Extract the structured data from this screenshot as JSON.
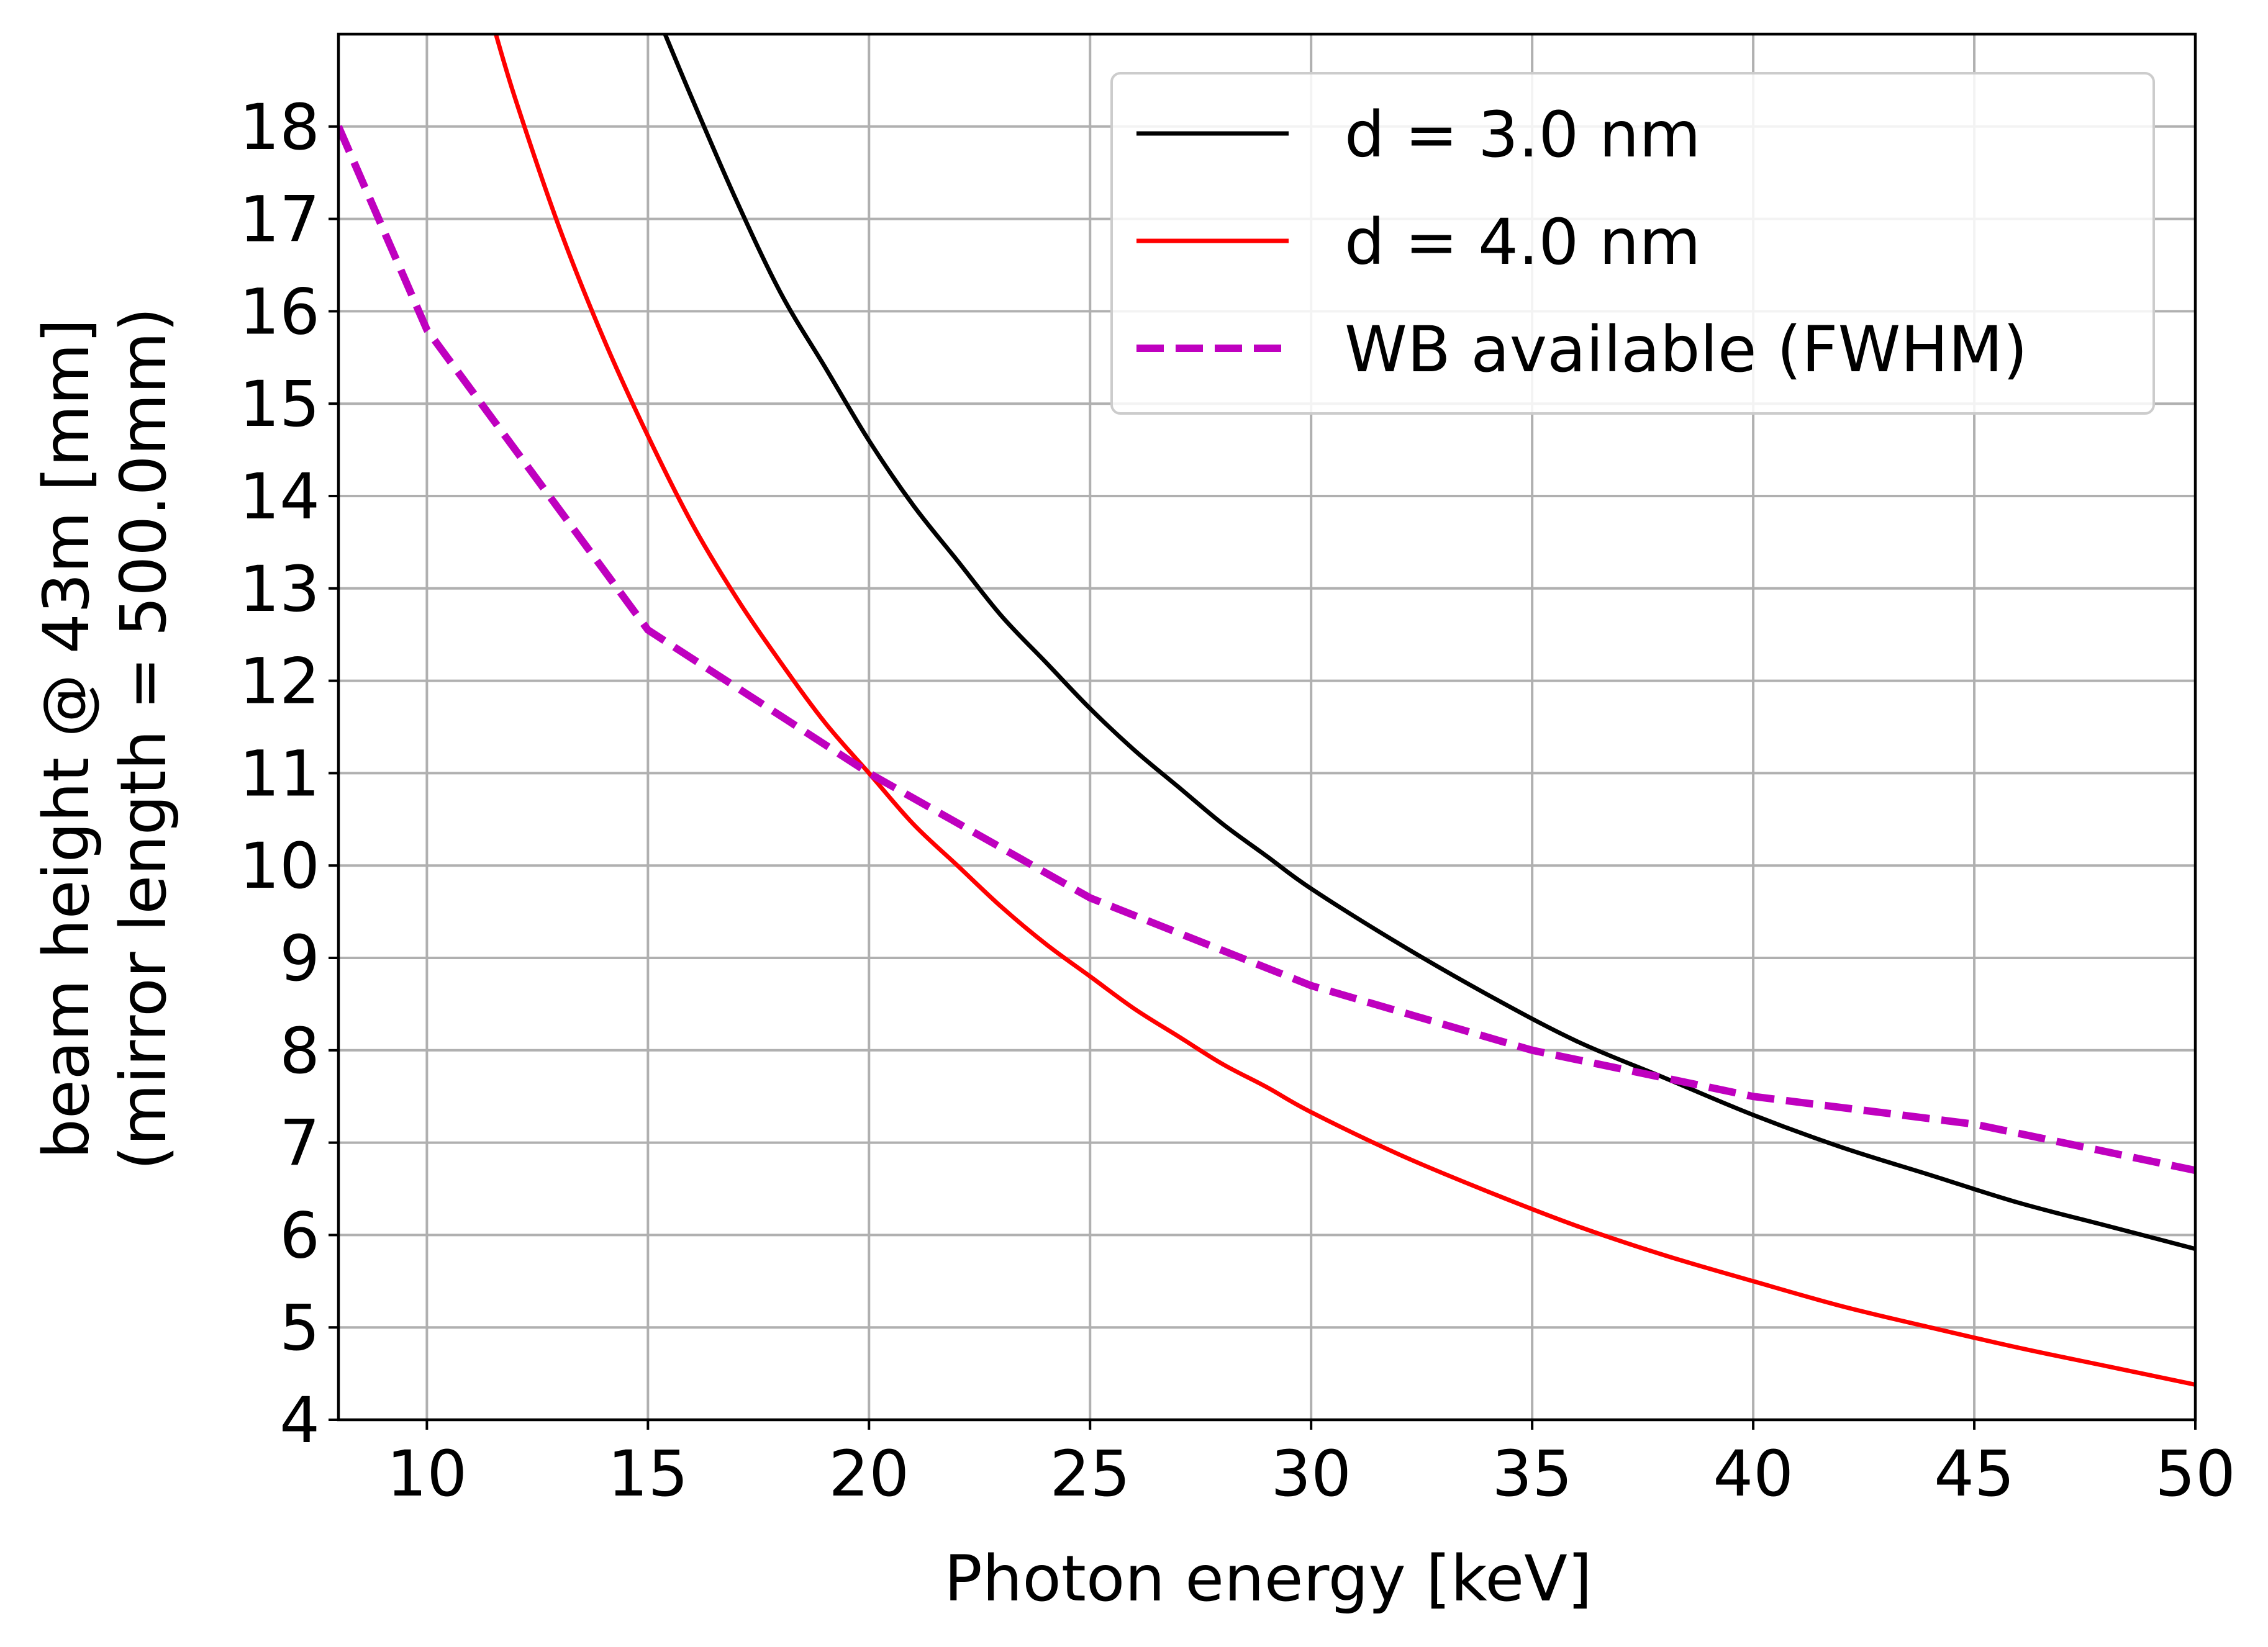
{
  "chart_data": {
    "type": "line",
    "title": "",
    "xlabel": "Photon energy [keV]",
    "ylabel_lines": [
      "beam height @ 43m [mm]",
      "(mirror length = 500.0mm)"
    ],
    "xlim": [
      8,
      50
    ],
    "ylim": [
      4,
      19
    ],
    "xticks": [
      10,
      15,
      20,
      25,
      30,
      35,
      40,
      45,
      50
    ],
    "yticks": [
      4,
      5,
      6,
      7,
      8,
      9,
      10,
      11,
      12,
      13,
      14,
      15,
      16,
      17,
      18
    ],
    "grid": true,
    "legend_position": "top-right",
    "series": [
      {
        "name": "d = 3.0 nm",
        "color": "#000000",
        "style": "solid",
        "x": [
          15.3,
          16,
          17,
          18,
          19,
          20,
          21,
          22,
          23,
          24,
          25,
          26,
          27,
          28,
          29,
          30,
          32,
          34,
          36,
          38,
          40,
          42,
          44,
          46,
          48,
          50
        ],
        "y": [
          19.1,
          18.3,
          17.2,
          16.2,
          15.4,
          14.6,
          13.9,
          13.3,
          12.7,
          12.2,
          11.7,
          11.25,
          10.85,
          10.45,
          10.1,
          9.75,
          9.15,
          8.6,
          8.1,
          7.7,
          7.3,
          6.95,
          6.65,
          6.35,
          6.1,
          5.85
        ]
      },
      {
        "name": "d = 4.0 nm",
        "color": "#ff0000",
        "style": "solid",
        "x": [
          11.5,
          12,
          13,
          14,
          15,
          16,
          17,
          18,
          19,
          20,
          21,
          22,
          23,
          24,
          25,
          26,
          27,
          28,
          29,
          30,
          32,
          34,
          36,
          38,
          40,
          42,
          44,
          46,
          48,
          50
        ],
        "y": [
          19.1,
          18.3,
          16.9,
          15.7,
          14.65,
          13.7,
          12.9,
          12.2,
          11.55,
          11.0,
          10.45,
          10.0,
          9.55,
          9.15,
          8.8,
          8.45,
          8.15,
          7.85,
          7.6,
          7.33,
          6.87,
          6.47,
          6.1,
          5.78,
          5.5,
          5.23,
          5.0,
          4.78,
          4.58,
          4.38
        ]
      },
      {
        "name": "WB available (FWHM)",
        "color": "#bf00bf",
        "style": "dashed",
        "x": [
          8,
          10,
          15,
          20,
          25,
          30,
          35,
          40,
          45,
          50
        ],
        "y": [
          18.0,
          15.8,
          12.55,
          11.0,
          9.65,
          8.7,
          8.0,
          7.5,
          7.2,
          6.7
        ]
      }
    ]
  }
}
